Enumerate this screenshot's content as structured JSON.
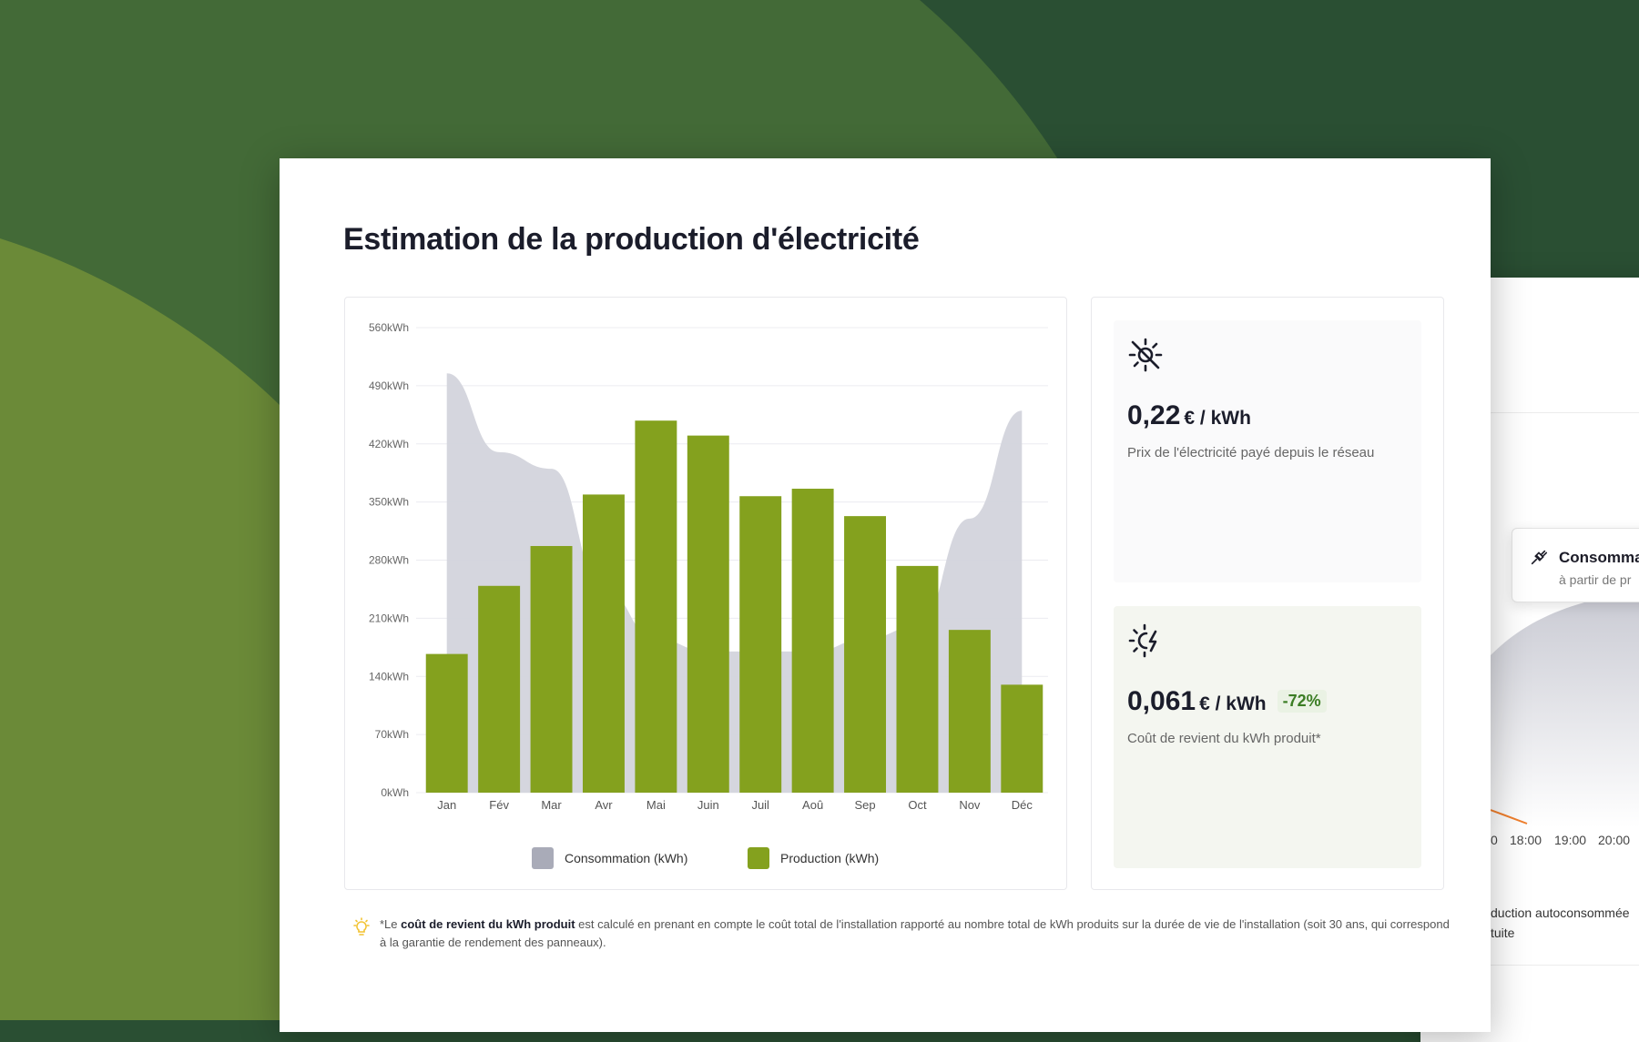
{
  "colors": {
    "background": "#2a4f33",
    "accent_green": "#84a11e",
    "consumption_gray": "#a9abb8",
    "badge_green": "#3b7d24"
  },
  "card": {
    "title": "Estimation de la production d'électricité"
  },
  "chart_data": {
    "type": "bar",
    "categories": [
      "Jan",
      "Fév",
      "Mar",
      "Avr",
      "Mai",
      "Juin",
      "Juil",
      "Aoû",
      "Sep",
      "Oct",
      "Nov",
      "Déc"
    ],
    "y_ticks": [
      "0kWh",
      "70kWh",
      "140kWh",
      "210kWh",
      "280kWh",
      "350kWh",
      "420kWh",
      "490kWh",
      "560kWh"
    ],
    "ylim": [
      0,
      560
    ],
    "grid": true,
    "legend_position": "bottom",
    "series": [
      {
        "name": "Consommation (kWh)",
        "kind": "area",
        "color": "#d3d4dc",
        "values": [
          505,
          410,
          390,
          245,
          185,
          170,
          170,
          170,
          185,
          200,
          330,
          460
        ]
      },
      {
        "name": "Production (kWh)",
        "kind": "bar",
        "color": "#84a11e",
        "values": [
          167,
          249,
          297,
          359,
          448,
          430,
          357,
          366,
          333,
          273,
          196,
          130
        ]
      }
    ]
  },
  "legend": {
    "consumption_label": "Consommation (kWh)",
    "production_label": "Production (kWh)"
  },
  "stats": {
    "grid_price": {
      "icon": "sun-off-icon",
      "value": "0,22",
      "unit": "€ / kWh",
      "description": "Prix de l'électricité payé depuis le réseau"
    },
    "production_cost": {
      "icon": "solar-bolt-icon",
      "value": "0,061",
      "unit": "€ / kWh",
      "badge": "-72%",
      "description": "Coût de revient du kWh produit*"
    }
  },
  "footnote": {
    "icon": "lightbulb-icon",
    "prefix": "*Le ",
    "bold": "coût de revient du kWh produit",
    "rest": " est calculé en prenant en compte le coût total de l'installation rapporté au nombre total de kWh produits sur la durée de vie de l'installation (soit 30 ans, qui correspond à la garantie de rendement des panneaux)."
  },
  "background_card": {
    "tooltip_title": "Consommat",
    "tooltip_sub": "à partir de pr",
    "time_ticks": [
      "0",
      "18:00",
      "19:00",
      "20:00"
    ],
    "text_line1": "duction autoconsommée",
    "text_line2": "tuite"
  }
}
